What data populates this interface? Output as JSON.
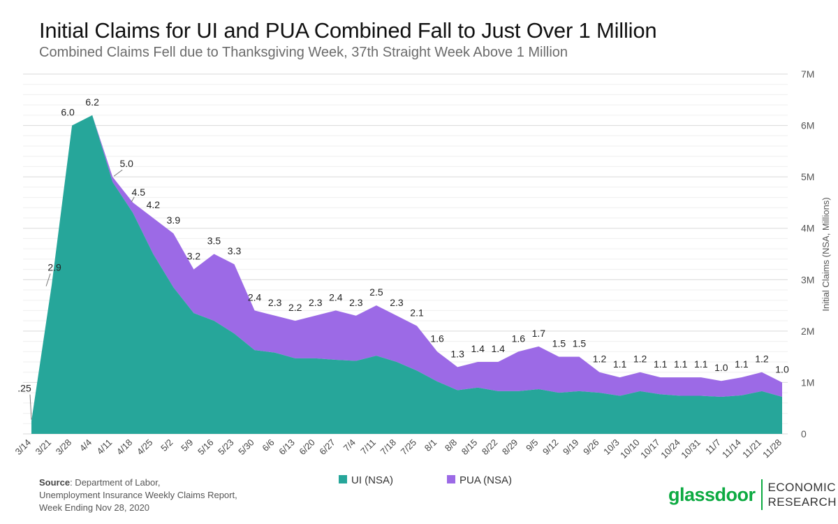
{
  "header": {
    "title": "Initial Claims for UI and PUA Combined Fall to Just Over 1 Million",
    "subtitle": "Combined Claims Fell due to Thanksgiving Week, 37th Straight Week Above 1 Million"
  },
  "footer": {
    "source_label": "Source",
    "source_text": ": Department of Labor,",
    "source_line2": "Unemployment Insurance Weekly Claims Report,",
    "source_line3": "Week Ending Nov 28, 2020"
  },
  "brand": {
    "logo": "glassdoor",
    "line1": "ECONOMIC",
    "line2": "RESEARCH"
  },
  "chart_data": {
    "type": "area",
    "stacked": true,
    "title": "Initial Claims for UI and PUA Combined Fall to Just Over 1 Million",
    "ylabel": "Initial Claims (NSA, Millions)",
    "y_axis_position": "right",
    "ylim": [
      0,
      7
    ],
    "yticks": [
      0,
      1,
      2,
      3,
      4,
      5,
      6,
      7
    ],
    "ytick_labels": [
      "0",
      "1M",
      "2M",
      "3M",
      "4M",
      "5M",
      "6M",
      "7M"
    ],
    "grid": true,
    "legend_position": "bottom-center",
    "categories": [
      "3/14",
      "3/21",
      "3/28",
      "4/4",
      "4/11",
      "4/18",
      "4/25",
      "5/2",
      "5/9",
      "5/16",
      "5/23",
      "5/30",
      "6/6",
      "6/13",
      "6/20",
      "6/27",
      "7/4",
      "7/11",
      "7/18",
      "7/25",
      "8/1",
      "8/8",
      "8/15",
      "8/22",
      "8/29",
      "9/5",
      "9/12",
      "9/19",
      "9/26",
      "10/3",
      "10/10",
      "10/17",
      "10/24",
      "10/31",
      "11/7",
      "11/14",
      "11/21",
      "11/28"
    ],
    "series": [
      {
        "name": "UI (NSA)",
        "color": "#26a69a",
        "values": [
          0.25,
          2.9,
          6.0,
          6.2,
          4.9,
          4.3,
          3.5,
          2.85,
          2.35,
          2.2,
          1.95,
          1.63,
          1.58,
          1.47,
          1.47,
          1.44,
          1.42,
          1.52,
          1.4,
          1.23,
          1.02,
          0.85,
          0.9,
          0.83,
          0.83,
          0.87,
          0.8,
          0.83,
          0.8,
          0.74,
          0.83,
          0.77,
          0.74,
          0.74,
          0.72,
          0.75,
          0.83,
          0.72
        ]
      },
      {
        "name": "PUA (NSA)",
        "color": "#9c6ae6",
        "values": [
          0,
          0,
          0,
          0,
          0.1,
          0.2,
          0.7,
          1.05,
          0.85,
          1.3,
          1.35,
          0.77,
          0.72,
          0.73,
          0.83,
          0.96,
          0.88,
          0.98,
          0.9,
          0.87,
          0.58,
          0.45,
          0.5,
          0.57,
          0.77,
          0.83,
          0.7,
          0.67,
          0.4,
          0.36,
          0.37,
          0.33,
          0.36,
          0.36,
          0.31,
          0.35,
          0.37,
          0.28
        ]
      }
    ],
    "total_labels": [
      ".25",
      "2.9",
      "6.0",
      "6.2",
      "5.0",
      "4.5",
      "4.2",
      "3.9",
      "3.2",
      "3.5",
      "3.3",
      "2.4",
      "2.3",
      "2.2",
      "2.3",
      "2.4",
      "2.3",
      "2.5",
      "2.3",
      "2.1",
      "1.6",
      "1.3",
      "1.4",
      "1.4",
      "1.6",
      "1.7",
      "1.5",
      "1.5",
      "1.2",
      "1.1",
      "1.2",
      "1.1",
      "1.1",
      "1.1",
      "1.0",
      "1.1",
      "1.2",
      "1.0"
    ]
  }
}
